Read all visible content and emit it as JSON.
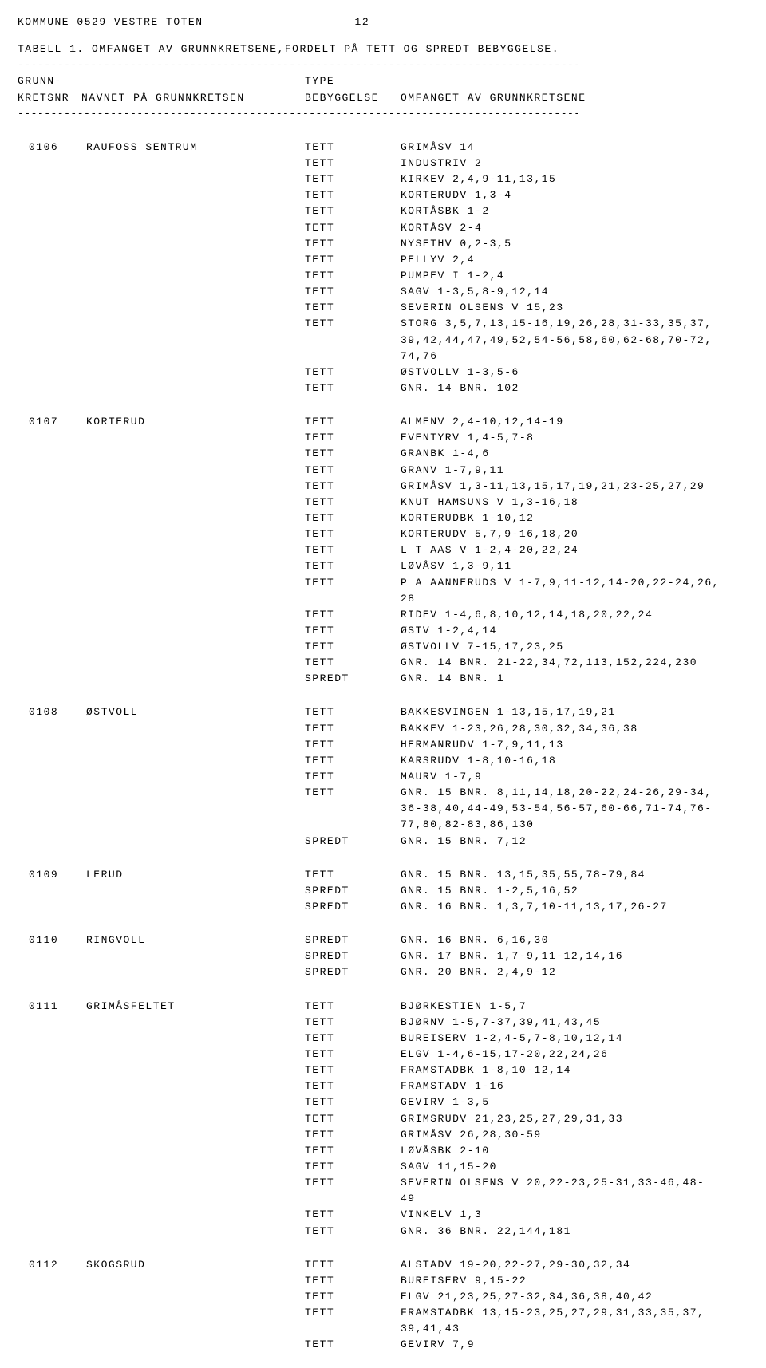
{
  "header": {
    "kommune": "KOMMUNE 0529 VESTRE TOTEN",
    "page": "12"
  },
  "subtitle": "TABELL 1. OMFANGET AV GRUNNKRETSENE,FORDELT PÅ TETT OG SPREDT BEBYGGELSE.",
  "dash": "-------------------------------------------------------------------------------------",
  "columns": {
    "l1_c1": "GRUNN-",
    "l1_c3": "TYPE",
    "l2_c1": "KRETSNR",
    "l2_c2": "NAVNET PÅ GRUNNKRETSEN",
    "l2_c3": "BEBYGGELSE",
    "l2_c4": "OMFANGET AV GRUNNKRETSENE"
  },
  "sections": [
    {
      "id": "0106",
      "name": "RAUFOSS SENTRUM",
      "rows": [
        {
          "type": "TETT",
          "ext": "GRIMÅSV 14"
        },
        {
          "type": "TETT",
          "ext": "INDUSTRIV 2"
        },
        {
          "type": "TETT",
          "ext": "KIRKEV 2,4,9-11,13,15"
        },
        {
          "type": "TETT",
          "ext": "KORTERUDV 1,3-4"
        },
        {
          "type": "TETT",
          "ext": "KORTÅSBK 1-2"
        },
        {
          "type": "TETT",
          "ext": "KORTÅSV 2-4"
        },
        {
          "type": "TETT",
          "ext": "NYSETHV 0,2-3,5"
        },
        {
          "type": "TETT",
          "ext": "PELLYV 2,4"
        },
        {
          "type": "TETT",
          "ext": "PUMPEV I 1-2,4"
        },
        {
          "type": "TETT",
          "ext": "SAGV 1-3,5,8-9,12,14"
        },
        {
          "type": "TETT",
          "ext": "SEVERIN OLSENS V 15,23"
        },
        {
          "type": "TETT",
          "ext": "STORG 3,5,7,13,15-16,19,26,28,31-33,35,37,"
        },
        {
          "type": "",
          "ext": "39,42,44,47,49,52,54-56,58,60,62-68,70-72,"
        },
        {
          "type": "",
          "ext": "74,76"
        },
        {
          "type": "TETT",
          "ext": "ØSTVOLLV 1-3,5-6"
        },
        {
          "type": "TETT",
          "ext": "GNR. 14 BNR. 102"
        }
      ]
    },
    {
      "id": "0107",
      "name": "KORTERUD",
      "rows": [
        {
          "type": "TETT",
          "ext": "ALMENV 2,4-10,12,14-19"
        },
        {
          "type": "TETT",
          "ext": "EVENTYRV 1,4-5,7-8"
        },
        {
          "type": "TETT",
          "ext": "GRANBK 1-4,6"
        },
        {
          "type": "TETT",
          "ext": "GRANV 1-7,9,11"
        },
        {
          "type": "TETT",
          "ext": "GRIMÅSV 1,3-11,13,15,17,19,21,23-25,27,29"
        },
        {
          "type": "TETT",
          "ext": "KNUT HAMSUNS V 1,3-16,18"
        },
        {
          "type": "TETT",
          "ext": "KORTERUDBK 1-10,12"
        },
        {
          "type": "TETT",
          "ext": "KORTERUDV 5,7,9-16,18,20"
        },
        {
          "type": "TETT",
          "ext": "L T AAS V 1-2,4-20,22,24"
        },
        {
          "type": "TETT",
          "ext": "LØVÅSV 1,3-9,11"
        },
        {
          "type": "TETT",
          "ext": "P A AANNERUDS V 1-7,9,11-12,14-20,22-24,26,"
        },
        {
          "type": "",
          "ext": "28"
        },
        {
          "type": "TETT",
          "ext": "RIDEV 1-4,6,8,10,12,14,18,20,22,24"
        },
        {
          "type": "TETT",
          "ext": "ØSTV 1-2,4,14"
        },
        {
          "type": "TETT",
          "ext": "ØSTVOLLV 7-15,17,23,25"
        },
        {
          "type": "TETT",
          "ext": "GNR. 14 BNR. 21-22,34,72,113,152,224,230"
        },
        {
          "type": "SPREDT",
          "ext": "GNR. 14 BNR. 1"
        }
      ]
    },
    {
      "id": "0108",
      "name": "ØSTVOLL",
      "rows": [
        {
          "type": "TETT",
          "ext": "BAKKESVINGEN 1-13,15,17,19,21"
        },
        {
          "type": "TETT",
          "ext": "BAKKEV 1-23,26,28,30,32,34,36,38"
        },
        {
          "type": "TETT",
          "ext": "HERMANRUDV 1-7,9,11,13"
        },
        {
          "type": "TETT",
          "ext": "KARSRUDV 1-8,10-16,18"
        },
        {
          "type": "TETT",
          "ext": "MAURV 1-7,9"
        },
        {
          "type": "TETT",
          "ext": "GNR. 15 BNR. 8,11,14,18,20-22,24-26,29-34,"
        },
        {
          "type": "",
          "ext": "36-38,40,44-49,53-54,56-57,60-66,71-74,76-"
        },
        {
          "type": "",
          "ext": "77,80,82-83,86,130"
        },
        {
          "type": "SPREDT",
          "ext": "GNR. 15 BNR. 7,12"
        }
      ]
    },
    {
      "id": "0109",
      "name": "LERUD",
      "rows": [
        {
          "type": "TETT",
          "ext": "GNR. 15 BNR. 13,15,35,55,78-79,84"
        },
        {
          "type": "SPREDT",
          "ext": "GNR. 15 BNR. 1-2,5,16,52"
        },
        {
          "type": "SPREDT",
          "ext": "GNR. 16 BNR. 1,3,7,10-11,13,17,26-27"
        }
      ]
    },
    {
      "id": "0110",
      "name": "RINGVOLL",
      "rows": [
        {
          "type": "SPREDT",
          "ext": "GNR. 16 BNR. 6,16,30"
        },
        {
          "type": "SPREDT",
          "ext": "GNR. 17 BNR. 1,7-9,11-12,14,16"
        },
        {
          "type": "SPREDT",
          "ext": "GNR. 20 BNR. 2,4,9-12"
        }
      ]
    },
    {
      "id": "0111",
      "name": "GRIMÅSFELTET",
      "rows": [
        {
          "type": "TETT",
          "ext": "BJØRKESTIEN 1-5,7"
        },
        {
          "type": "TETT",
          "ext": "BJØRNV 1-5,7-37,39,41,43,45"
        },
        {
          "type": "TETT",
          "ext": "BUREISERV 1-2,4-5,7-8,10,12,14"
        },
        {
          "type": "TETT",
          "ext": "ELGV 1-4,6-15,17-20,22,24,26"
        },
        {
          "type": "TETT",
          "ext": "FRAMSTADBK 1-8,10-12,14"
        },
        {
          "type": "TETT",
          "ext": "FRAMSTADV 1-16"
        },
        {
          "type": "TETT",
          "ext": "GEVIRV 1-3,5"
        },
        {
          "type": "TETT",
          "ext": "GRIMSRUDV 21,23,25,27,29,31,33"
        },
        {
          "type": "TETT",
          "ext": "GRIMÅSV 26,28,30-59"
        },
        {
          "type": "TETT",
          "ext": "LØVÅSBK 2-10"
        },
        {
          "type": "TETT",
          "ext": "SAGV 11,15-20"
        },
        {
          "type": "TETT",
          "ext": "SEVERIN OLSENS V 20,22-23,25-31,33-46,48-"
        },
        {
          "type": "",
          "ext": "49"
        },
        {
          "type": "TETT",
          "ext": "VINKELV 1,3"
        },
        {
          "type": "TETT",
          "ext": "GNR. 36 BNR. 22,144,181"
        }
      ]
    },
    {
      "id": "0112",
      "name": "SKOGSRUD",
      "rows": [
        {
          "type": "TETT",
          "ext": "ALSTADV 19-20,22-27,29-30,32,34"
        },
        {
          "type": "TETT",
          "ext": "BUREISERV 9,15-22"
        },
        {
          "type": "TETT",
          "ext": "ELGV 21,23,25,27-32,34,36,38,40,42"
        },
        {
          "type": "TETT",
          "ext": "FRAMSTADBK 13,15-23,25,27,29,31,33,35,37,"
        },
        {
          "type": "",
          "ext": "39,41,43"
        },
        {
          "type": "TETT",
          "ext": "GEVIRV 7,9"
        }
      ]
    }
  ]
}
